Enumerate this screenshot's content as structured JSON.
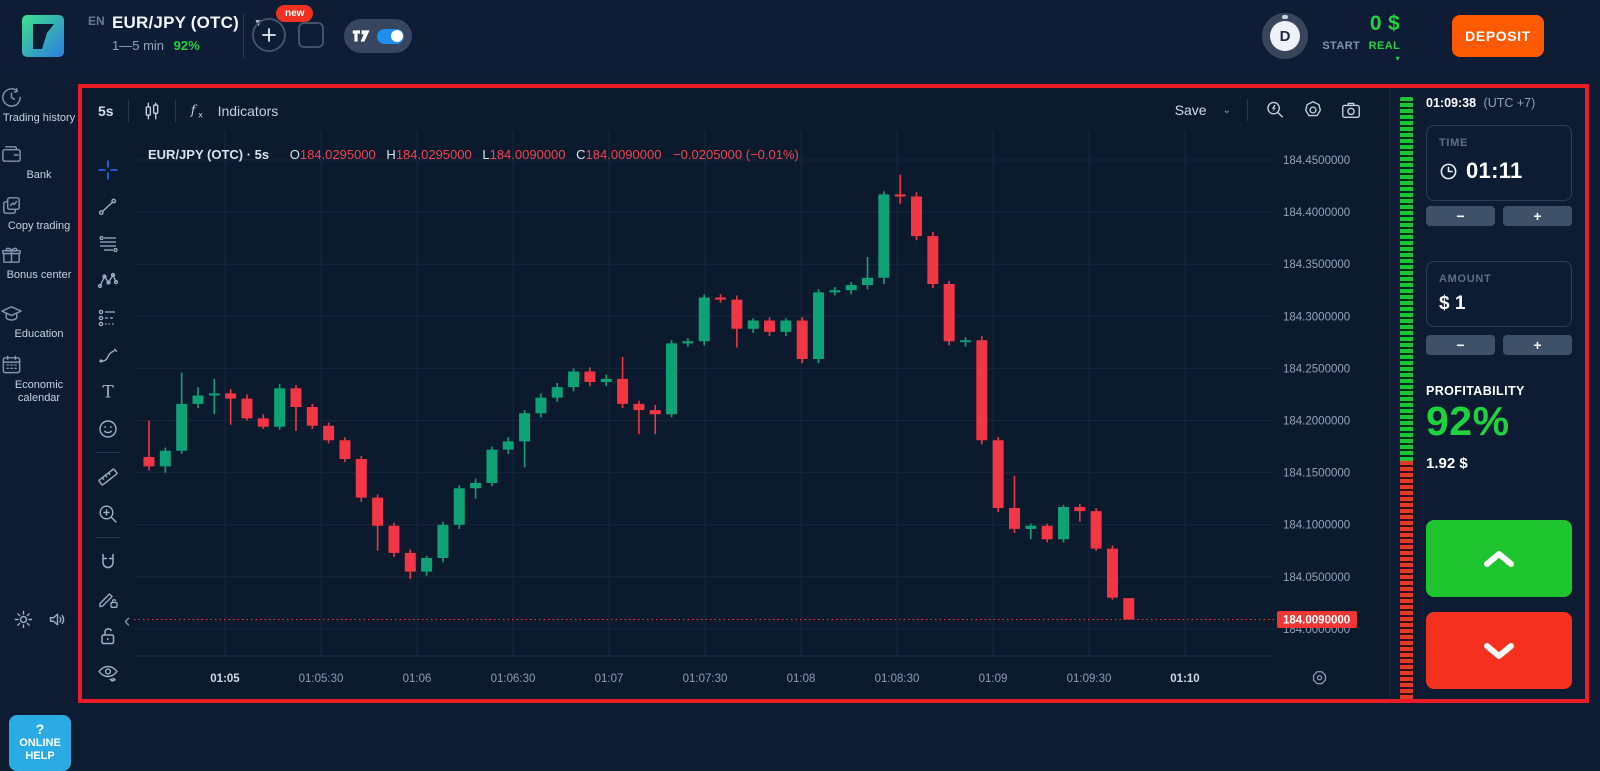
{
  "topbar": {
    "lang": "EN",
    "pair": "EUR/JPY (OTC)",
    "pair_sub": "1—5 min",
    "payout": "92%",
    "new_badge": "new",
    "balance": "0 $",
    "start_label": "START",
    "account_type": "REAL",
    "deposit": "DEPOSIT",
    "avatar": "D"
  },
  "sidebar": {
    "items": [
      {
        "icon": "history-icon",
        "label": "Trading history"
      },
      {
        "icon": "wallet-icon",
        "label": "Bank"
      },
      {
        "icon": "copy-trading-icon",
        "label": "Copy trading"
      },
      {
        "icon": "gift-icon",
        "label": "Bonus center"
      },
      {
        "icon": "graduation-cap-icon",
        "label": "Education"
      },
      {
        "icon": "calendar-icon",
        "label": "Economic calendar"
      }
    ],
    "help_q": "?",
    "help_line1": "ONLINE",
    "help_line2": "HELP"
  },
  "chart": {
    "interval": "5s",
    "indicators": "Indicators",
    "save": "Save",
    "tools": [
      "crosshair",
      "trend-line",
      "horizontal-lines",
      "xabcd-pattern",
      "forecast",
      "brush",
      "text",
      "emoji",
      "ruler",
      "zoom-in",
      "magnet",
      "drawing-lock",
      "lock-all",
      "hide-drawings"
    ],
    "legend": {
      "symbol": "EUR/JPY (OTC) · 5s",
      "o_label": "O",
      "o": "184.0295000",
      "h_label": "H",
      "h": "184.0295000",
      "l_label": "L",
      "l": "184.0090000",
      "c_label": "C",
      "c": "184.0090000",
      "change": "−0.0205000 (−0.01%)"
    }
  },
  "panel": {
    "server_time": "01:09:38",
    "utc": "(UTC +7)",
    "time_label": "TIME",
    "time_value": "01:11",
    "minus": "−",
    "plus": "+",
    "amount_label": "AMOUNT",
    "amount_value": "$ 1",
    "profitability_label": "PROFITABILITY",
    "profitability_value": "92%",
    "payout_value": "1.92 $",
    "sentiment": {
      "up_percent": 60,
      "down_percent": 40
    }
  },
  "chart_data": {
    "type": "candlestick",
    "title": "EUR/JPY (OTC) 5s candles",
    "interval_seconds": 5,
    "start_time": "01:04:35",
    "ylim": [
      183.97,
      184.47
    ],
    "grid": true,
    "last_candle_ohlc": {
      "o": "184.0295000",
      "h": "184.0295000",
      "l": "184.0090000",
      "c": "184.0090000",
      "change": "−0.0205000 (−0.01%)"
    },
    "current_price": 184.009,
    "current_price_label": "184.0090000",
    "price_tick_values": [
      184.45,
      184.4,
      184.35,
      184.3,
      184.25,
      184.2,
      184.15,
      184.1,
      184.05,
      184.0
    ],
    "price_ticks": [
      "184.4500000",
      "184.4000000",
      "184.3500000",
      "184.3000000",
      "184.2500000",
      "184.2000000",
      "184.1500000",
      "184.1000000",
      "184.0500000",
      "184.0000000"
    ],
    "time_ticks": [
      "01:05",
      "01:05:30",
      "01:06",
      "01:06:30",
      "01:07",
      "01:07:30",
      "01:08",
      "01:08:30",
      "01:09",
      "01:09:30",
      "01:10"
    ],
    "time_tick_emphasis": [
      0,
      10
    ],
    "candles": [
      [
        184.165,
        184.2,
        184.152,
        184.156
      ],
      [
        184.156,
        184.174,
        184.15,
        184.171
      ],
      [
        184.171,
        184.246,
        184.168,
        184.216
      ],
      [
        184.216,
        184.232,
        184.212,
        184.224
      ],
      [
        184.224,
        184.24,
        184.206,
        184.226
      ],
      [
        184.226,
        184.23,
        184.196,
        184.221
      ],
      [
        184.221,
        184.225,
        184.2,
        184.202
      ],
      [
        184.202,
        184.206,
        184.192,
        184.194
      ],
      [
        184.194,
        184.235,
        184.191,
        184.231
      ],
      [
        184.231,
        184.234,
        184.19,
        184.213
      ],
      [
        184.213,
        184.216,
        184.192,
        184.195
      ],
      [
        184.195,
        184.198,
        184.178,
        184.181
      ],
      [
        184.181,
        184.184,
        184.16,
        184.163
      ],
      [
        184.163,
        184.166,
        184.122,
        184.126
      ],
      [
        184.126,
        184.129,
        184.075,
        184.099
      ],
      [
        184.099,
        184.102,
        184.069,
        184.073
      ],
      [
        184.073,
        184.076,
        184.048,
        184.055
      ],
      [
        184.055,
        184.07,
        184.051,
        184.068
      ],
      [
        184.068,
        184.103,
        184.064,
        184.1
      ],
      [
        184.1,
        184.138,
        184.096,
        184.135
      ],
      [
        184.135,
        184.144,
        184.125,
        184.14
      ],
      [
        184.14,
        184.175,
        184.137,
        184.172
      ],
      [
        184.172,
        184.184,
        184.168,
        184.18
      ],
      [
        184.18,
        184.21,
        184.155,
        184.207
      ],
      [
        184.207,
        184.226,
        184.203,
        184.222
      ],
      [
        184.222,
        184.236,
        184.218,
        184.232
      ],
      [
        184.232,
        184.25,
        184.228,
        184.247
      ],
      [
        184.247,
        184.251,
        184.233,
        184.237
      ],
      [
        184.237,
        184.244,
        184.233,
        184.24
      ],
      [
        184.24,
        184.261,
        184.212,
        184.216
      ],
      [
        184.216,
        184.219,
        184.187,
        184.21
      ],
      [
        184.21,
        184.215,
        184.187,
        184.206
      ],
      [
        184.206,
        184.277,
        184.203,
        184.274
      ],
      [
        184.274,
        184.279,
        184.271,
        184.276
      ],
      [
        184.276,
        184.321,
        184.272,
        184.318
      ],
      [
        184.318,
        184.321,
        184.313,
        184.316
      ],
      [
        184.316,
        184.32,
        184.27,
        184.288
      ],
      [
        184.288,
        184.298,
        184.284,
        184.296
      ],
      [
        184.296,
        184.299,
        184.281,
        184.285
      ],
      [
        184.285,
        184.298,
        184.281,
        184.296
      ],
      [
        184.296,
        184.299,
        184.255,
        184.259
      ],
      [
        184.259,
        184.326,
        184.255,
        184.323
      ],
      [
        184.323,
        184.328,
        184.32,
        184.325
      ],
      [
        184.325,
        184.333,
        184.321,
        184.33
      ],
      [
        184.33,
        184.357,
        184.326,
        184.337
      ],
      [
        184.337,
        184.42,
        184.331,
        184.417
      ],
      [
        184.417,
        184.436,
        184.408,
        184.415
      ],
      [
        184.415,
        184.419,
        184.373,
        184.377
      ],
      [
        184.377,
        184.381,
        184.327,
        184.331
      ],
      [
        184.331,
        184.334,
        184.272,
        184.276
      ],
      [
        184.276,
        184.28,
        184.271,
        184.277
      ],
      [
        184.277,
        184.281,
        184.177,
        184.181
      ],
      [
        184.181,
        184.184,
        184.112,
        184.116
      ],
      [
        184.116,
        184.147,
        184.092,
        184.096
      ],
      [
        184.096,
        184.101,
        184.086,
        184.099
      ],
      [
        184.099,
        184.101,
        184.083,
        184.086
      ],
      [
        184.086,
        184.119,
        184.083,
        184.117
      ],
      [
        184.117,
        184.12,
        184.103,
        184.113
      ],
      [
        184.113,
        184.116,
        184.075,
        184.077
      ],
      [
        184.077,
        184.08,
        184.028,
        184.03
      ],
      [
        184.0295,
        184.0295,
        184.009,
        184.009
      ]
    ]
  },
  "colors": {
    "up_candle": "#10a277",
    "down_candle": "#f23645",
    "price_badge": "#f03535",
    "accent_green": "#1fd23f",
    "call_green": "#1ec52e",
    "put_red": "#f5301e",
    "deposit_orange": "#ff5a01",
    "help_blue": "#2aabe4",
    "grid": "#16273f",
    "axis_text": "#92a3b8"
  }
}
